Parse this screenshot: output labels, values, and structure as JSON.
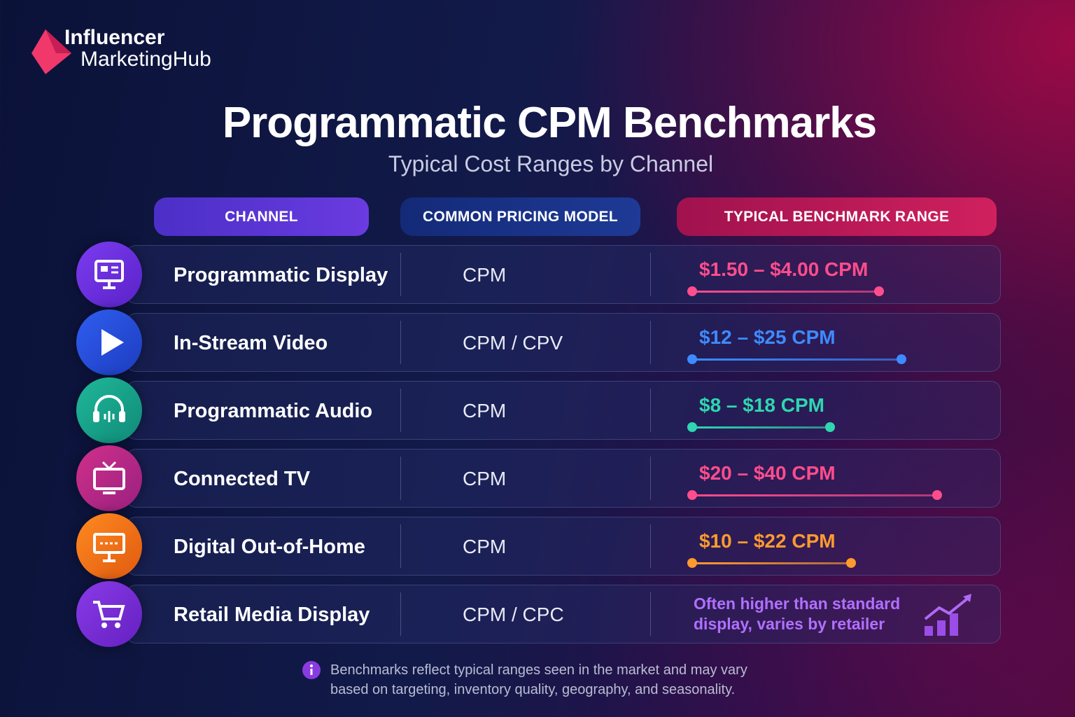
{
  "brand": {
    "line1": "Influencer",
    "line2": "MarketingHub"
  },
  "header": {
    "title": "Programmatic CPM Benchmarks",
    "subtitle": "Typical Cost Ranges by Channel"
  },
  "table": {
    "columns": [
      "CHANNEL",
      "COMMON PRICING MODEL",
      "TYPICAL BENCHMARK RANGE"
    ],
    "rows": [
      [
        "Programmatic Display",
        "CPM",
        "$1.50 – $4.00 CPM"
      ],
      [
        "In-Stream Video",
        "CPM / CPV",
        "$12 – $25 CPM"
      ],
      [
        "Programmatic Audio",
        "CPM",
        "$8 – $18 CPM"
      ],
      [
        "Connected TV",
        "CPM",
        "$20 – $40 CPM"
      ],
      [
        "Digital Out-of-Home",
        "CPM",
        "$10 – $22 CPM"
      ],
      [
        "Retail Media Display",
        "CPM / CPC",
        "Often higher than standard display, varies by retailer"
      ]
    ]
  },
  "note": "Benchmarks reflect typical ranges seen in the market and may vary based on targeting, inventory quality, geography, and seasonality."
}
